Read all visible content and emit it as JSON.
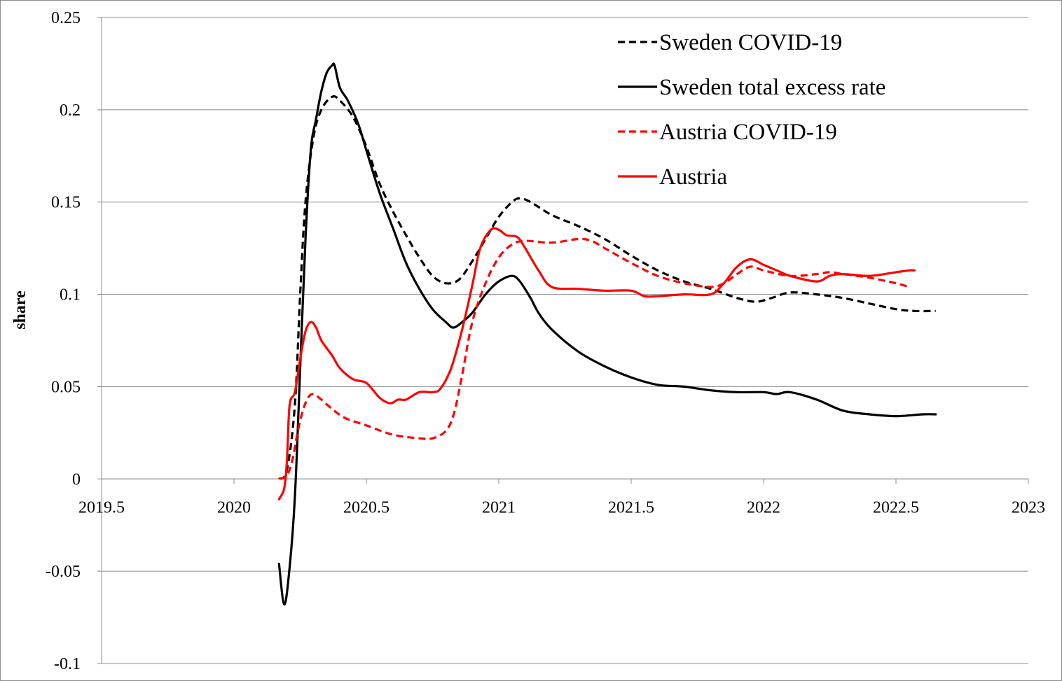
{
  "chart_data": {
    "type": "line",
    "ylabel": "share",
    "xlabel": "",
    "xlim": [
      2019.5,
      2023
    ],
    "ylim": [
      -0.1,
      0.25
    ],
    "x_ticks": [
      2019.5,
      2020,
      2020.5,
      2021,
      2021.5,
      2022,
      2022.5,
      2023
    ],
    "x_tick_labels": [
      "2019.5",
      "2020",
      "2020.5",
      "2021",
      "2021.5",
      "2022",
      "2022.5",
      "2023"
    ],
    "y_ticks": [
      -0.1,
      -0.05,
      0,
      0.05,
      0.1,
      0.15,
      0.2,
      0.25
    ],
    "y_tick_labels": [
      "-0.1",
      "-0.05",
      "0",
      "0.05",
      "0.1",
      "0.15",
      "0.2",
      "0.25"
    ],
    "grid": "horizontal",
    "legend_position": "top-right",
    "series": [
      {
        "name": "Sweden COVID-19",
        "color": "#000000",
        "dash": "dashed",
        "points": [
          [
            2020.17,
            0.0
          ],
          [
            2020.2,
            0.005
          ],
          [
            2020.23,
            0.04
          ],
          [
            2020.25,
            0.1
          ],
          [
            2020.27,
            0.15
          ],
          [
            2020.3,
            0.185
          ],
          [
            2020.33,
            0.2
          ],
          [
            2020.37,
            0.207
          ],
          [
            2020.4,
            0.205
          ],
          [
            2020.45,
            0.196
          ],
          [
            2020.5,
            0.18
          ],
          [
            2020.55,
            0.16
          ],
          [
            2020.6,
            0.145
          ],
          [
            2020.65,
            0.132
          ],
          [
            2020.7,
            0.12
          ],
          [
            2020.75,
            0.11
          ],
          [
            2020.8,
            0.106
          ],
          [
            2020.85,
            0.108
          ],
          [
            2020.9,
            0.118
          ],
          [
            2020.95,
            0.13
          ],
          [
            2021.0,
            0.142
          ],
          [
            2021.05,
            0.15
          ],
          [
            2021.08,
            0.152
          ],
          [
            2021.12,
            0.15
          ],
          [
            2021.2,
            0.143
          ],
          [
            2021.3,
            0.137
          ],
          [
            2021.4,
            0.13
          ],
          [
            2021.5,
            0.121
          ],
          [
            2021.6,
            0.113
          ],
          [
            2021.7,
            0.107
          ],
          [
            2021.8,
            0.103
          ],
          [
            2021.9,
            0.098
          ],
          [
            2021.97,
            0.096
          ],
          [
            2022.03,
            0.098
          ],
          [
            2022.1,
            0.101
          ],
          [
            2022.2,
            0.1
          ],
          [
            2022.3,
            0.098
          ],
          [
            2022.4,
            0.095
          ],
          [
            2022.5,
            0.092
          ],
          [
            2022.57,
            0.091
          ],
          [
            2022.65,
            0.091
          ]
        ]
      },
      {
        "name": "Sweden total excess rate",
        "color": "#000000",
        "dash": "solid",
        "points": [
          [
            2020.17,
            -0.046
          ],
          [
            2020.19,
            -0.068
          ],
          [
            2020.21,
            -0.048
          ],
          [
            2020.23,
            -0.01
          ],
          [
            2020.25,
            0.06
          ],
          [
            2020.27,
            0.13
          ],
          [
            2020.29,
            0.178
          ],
          [
            2020.31,
            0.195
          ],
          [
            2020.33,
            0.21
          ],
          [
            2020.35,
            0.22
          ],
          [
            2020.37,
            0.224
          ],
          [
            2020.38,
            0.224
          ],
          [
            2020.4,
            0.212
          ],
          [
            2020.43,
            0.205
          ],
          [
            2020.47,
            0.192
          ],
          [
            2020.5,
            0.178
          ],
          [
            2020.55,
            0.155
          ],
          [
            2020.6,
            0.136
          ],
          [
            2020.65,
            0.117
          ],
          [
            2020.7,
            0.103
          ],
          [
            2020.75,
            0.092
          ],
          [
            2020.8,
            0.085
          ],
          [
            2020.83,
            0.082
          ],
          [
            2020.87,
            0.086
          ],
          [
            2020.9,
            0.09
          ],
          [
            2020.95,
            0.1
          ],
          [
            2021.0,
            0.107
          ],
          [
            2021.05,
            0.11
          ],
          [
            2021.08,
            0.107
          ],
          [
            2021.12,
            0.098
          ],
          [
            2021.15,
            0.09
          ],
          [
            2021.2,
            0.081
          ],
          [
            2021.3,
            0.069
          ],
          [
            2021.4,
            0.061
          ],
          [
            2021.5,
            0.055
          ],
          [
            2021.6,
            0.051
          ],
          [
            2021.7,
            0.05
          ],
          [
            2021.8,
            0.048
          ],
          [
            2021.9,
            0.047
          ],
          [
            2022.0,
            0.047
          ],
          [
            2022.05,
            0.046
          ],
          [
            2022.1,
            0.047
          ],
          [
            2022.2,
            0.043
          ],
          [
            2022.3,
            0.037
          ],
          [
            2022.4,
            0.035
          ],
          [
            2022.5,
            0.034
          ],
          [
            2022.6,
            0.035
          ],
          [
            2022.65,
            0.035
          ]
        ]
      },
      {
        "name": "Austria COVID-19",
        "color": "#ff0000",
        "dash": "dashed",
        "points": [
          [
            2020.17,
            0.0
          ],
          [
            2020.2,
            0.002
          ],
          [
            2020.22,
            0.01
          ],
          [
            2020.24,
            0.025
          ],
          [
            2020.26,
            0.037
          ],
          [
            2020.28,
            0.044
          ],
          [
            2020.3,
            0.046
          ],
          [
            2020.33,
            0.043
          ],
          [
            2020.37,
            0.038
          ],
          [
            2020.42,
            0.033
          ],
          [
            2020.5,
            0.029
          ],
          [
            2020.6,
            0.024
          ],
          [
            2020.7,
            0.022
          ],
          [
            2020.75,
            0.022
          ],
          [
            2020.8,
            0.026
          ],
          [
            2020.83,
            0.035
          ],
          [
            2020.86,
            0.055
          ],
          [
            2020.9,
            0.085
          ],
          [
            2020.95,
            0.106
          ],
          [
            2021.0,
            0.12
          ],
          [
            2021.05,
            0.127
          ],
          [
            2021.1,
            0.129
          ],
          [
            2021.2,
            0.128
          ],
          [
            2021.3,
            0.13
          ],
          [
            2021.35,
            0.129
          ],
          [
            2021.4,
            0.125
          ],
          [
            2021.5,
            0.117
          ],
          [
            2021.6,
            0.11
          ],
          [
            2021.7,
            0.106
          ],
          [
            2021.8,
            0.104
          ],
          [
            2021.85,
            0.106
          ],
          [
            2021.9,
            0.111
          ],
          [
            2021.95,
            0.115
          ],
          [
            2022.0,
            0.113
          ],
          [
            2022.1,
            0.11
          ],
          [
            2022.2,
            0.111
          ],
          [
            2022.25,
            0.112
          ],
          [
            2022.3,
            0.111
          ],
          [
            2022.4,
            0.109
          ],
          [
            2022.5,
            0.106
          ],
          [
            2022.55,
            0.104
          ]
        ]
      },
      {
        "name": "Austria",
        "color": "#ff0000",
        "dash": "solid",
        "points": [
          [
            2020.17,
            -0.011
          ],
          [
            2020.19,
            -0.005
          ],
          [
            2020.2,
            0.01
          ],
          [
            2020.21,
            0.04
          ],
          [
            2020.23,
            0.047
          ],
          [
            2020.25,
            0.065
          ],
          [
            2020.27,
            0.08
          ],
          [
            2020.29,
            0.085
          ],
          [
            2020.31,
            0.082
          ],
          [
            2020.33,
            0.075
          ],
          [
            2020.37,
            0.067
          ],
          [
            2020.4,
            0.06
          ],
          [
            2020.45,
            0.054
          ],
          [
            2020.5,
            0.052
          ],
          [
            2020.55,
            0.044
          ],
          [
            2020.59,
            0.041
          ],
          [
            2020.62,
            0.043
          ],
          [
            2020.65,
            0.043
          ],
          [
            2020.7,
            0.047
          ],
          [
            2020.75,
            0.047
          ],
          [
            2020.78,
            0.049
          ],
          [
            2020.82,
            0.06
          ],
          [
            2020.86,
            0.08
          ],
          [
            2020.9,
            0.105
          ],
          [
            2020.93,
            0.125
          ],
          [
            2020.97,
            0.135
          ],
          [
            2021.0,
            0.135
          ],
          [
            2021.03,
            0.132
          ],
          [
            2021.07,
            0.131
          ],
          [
            2021.1,
            0.125
          ],
          [
            2021.15,
            0.113
          ],
          [
            2021.2,
            0.104
          ],
          [
            2021.3,
            0.103
          ],
          [
            2021.4,
            0.102
          ],
          [
            2021.5,
            0.102
          ],
          [
            2021.55,
            0.099
          ],
          [
            2021.6,
            0.099
          ],
          [
            2021.7,
            0.1
          ],
          [
            2021.8,
            0.1
          ],
          [
            2021.85,
            0.106
          ],
          [
            2021.9,
            0.115
          ],
          [
            2021.95,
            0.119
          ],
          [
            2022.0,
            0.116
          ],
          [
            2022.05,
            0.113
          ],
          [
            2022.1,
            0.11
          ],
          [
            2022.2,
            0.107
          ],
          [
            2022.25,
            0.11
          ],
          [
            2022.3,
            0.111
          ],
          [
            2022.4,
            0.11
          ],
          [
            2022.5,
            0.112
          ],
          [
            2022.55,
            0.113
          ],
          [
            2022.57,
            0.113
          ]
        ]
      }
    ]
  }
}
